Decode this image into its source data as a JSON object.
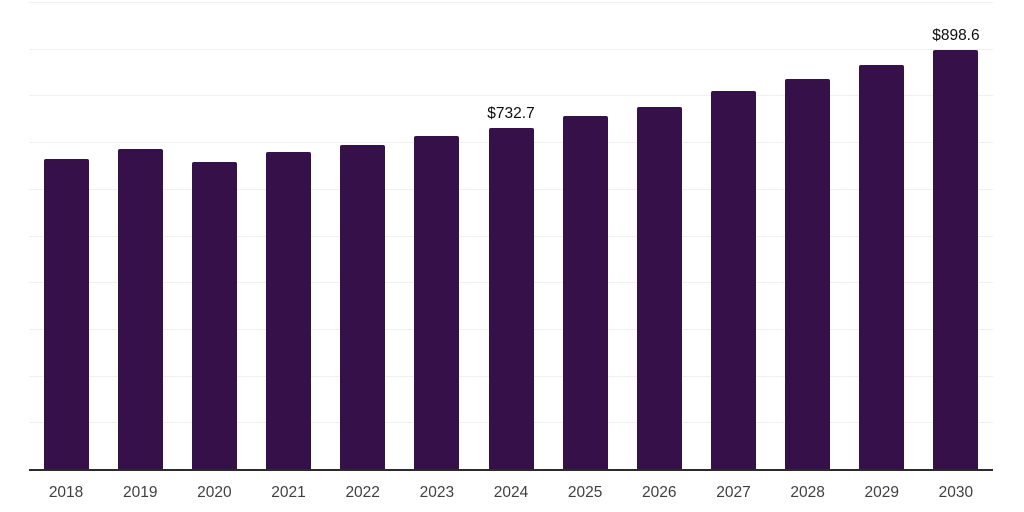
{
  "colors": {
    "background": "#ffffff",
    "bar": "#361049",
    "gridline": "#f0f0f0",
    "axis_line": "#2b2b2b",
    "tick_label": "#404040",
    "value_label": "#0d0d0d"
  },
  "chart_data": {
    "type": "bar",
    "title": "",
    "xlabel": "",
    "ylabel": "",
    "categories": [
      "2018",
      "2019",
      "2020",
      "2021",
      "2022",
      "2023",
      "2024",
      "2025",
      "2026",
      "2027",
      "2028",
      "2029",
      "2030"
    ],
    "values": [
      666,
      687,
      660,
      682,
      696,
      715,
      732.7,
      757,
      778,
      811,
      838,
      868,
      898.6
    ],
    "labeled_points": [
      {
        "category": "2024",
        "text": "$732.7"
      },
      {
        "category": "2030",
        "text": "$898.6"
      }
    ],
    "ylim": [
      0,
      1000
    ],
    "gridline_step": 100,
    "grid": "horizontal",
    "y_axis_tick_labels_visible": false,
    "legend_position": "none"
  }
}
